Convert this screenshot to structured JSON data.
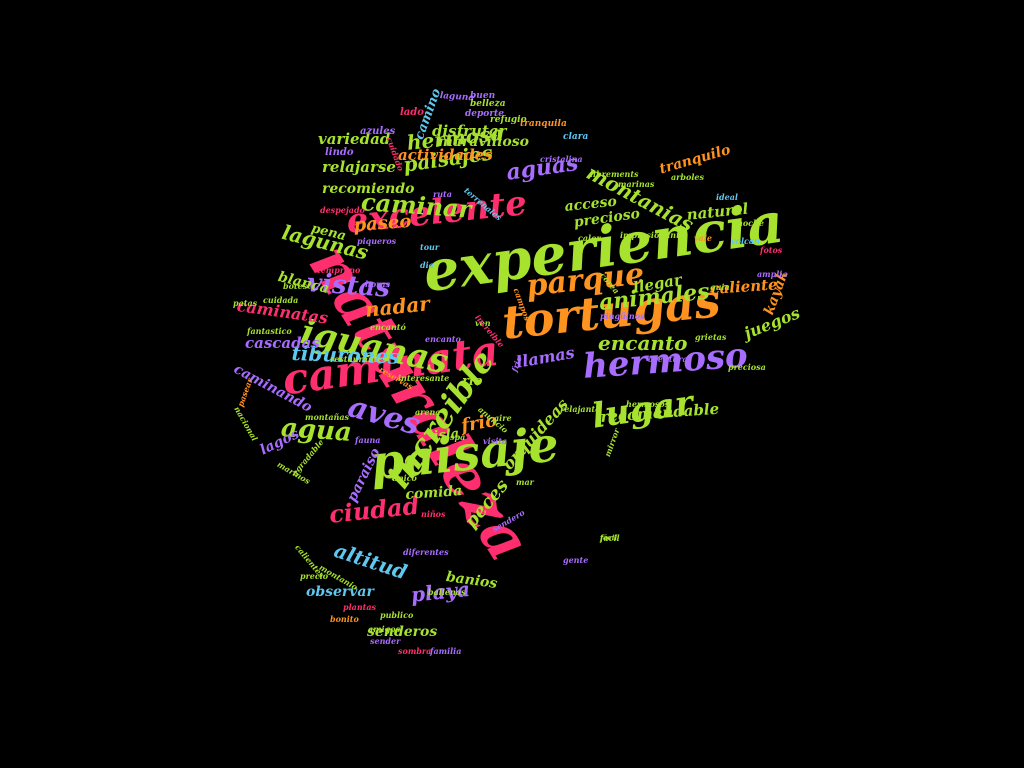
{
  "palette": {
    "pink": "#ff2e6e",
    "green": "#a6e22e",
    "orange": "#ff9320",
    "purple": "#a86cff",
    "cyan": "#5ec8f0",
    "background": "#000000"
  },
  "words": [
    {
      "text": "naturaleza",
      "color": "pink"
    },
    {
      "text": "experiencia",
      "color": "green"
    },
    {
      "text": "tortugas",
      "color": "orange"
    },
    {
      "text": "paisaje",
      "color": "green"
    },
    {
      "text": "caminata",
      "color": "pink"
    },
    {
      "text": "hermoso",
      "color": "purple"
    },
    {
      "text": "excelente",
      "color": "pink"
    },
    {
      "text": "iguanas",
      "color": "green"
    },
    {
      "text": "lugar",
      "color": "green"
    },
    {
      "text": "increible",
      "color": "green"
    },
    {
      "text": "parque",
      "color": "orange"
    },
    {
      "text": "aves",
      "color": "purple"
    },
    {
      "text": "vistas",
      "color": "purple"
    },
    {
      "text": "animales",
      "color": "green"
    },
    {
      "text": "caminar",
      "color": "green"
    },
    {
      "text": "aguas",
      "color": "purple"
    },
    {
      "text": "agua",
      "color": "green"
    },
    {
      "text": "montanias",
      "color": "green"
    },
    {
      "text": "tiburones",
      "color": "cyan"
    },
    {
      "text": "ciudad",
      "color": "pink"
    },
    {
      "text": "paisajes",
      "color": "green"
    },
    {
      "text": "lagunas",
      "color": "green"
    },
    {
      "text": "hermosa",
      "color": "green"
    },
    {
      "text": "encanto",
      "color": "green"
    },
    {
      "text": "altitud",
      "color": "cyan"
    },
    {
      "text": "playa",
      "color": "purple"
    },
    {
      "text": "nadar",
      "color": "orange"
    },
    {
      "text": "peces",
      "color": "green"
    },
    {
      "text": "paseo",
      "color": "orange"
    },
    {
      "text": "frio",
      "color": "orange"
    },
    {
      "text": "orquideas",
      "color": "green"
    },
    {
      "text": "juegos",
      "color": "green"
    },
    {
      "text": "llamas",
      "color": "purple"
    },
    {
      "text": "recomendable",
      "color": "green"
    },
    {
      "text": "actividades",
      "color": "orange"
    },
    {
      "text": "disfrutar",
      "color": "green"
    },
    {
      "text": "maravilloso",
      "color": "green"
    },
    {
      "text": "variedad",
      "color": "green"
    },
    {
      "text": "relajarse",
      "color": "green"
    },
    {
      "text": "recomiendo",
      "color": "green"
    },
    {
      "text": "caminatas",
      "color": "pink"
    },
    {
      "text": "cascadas",
      "color": "purple"
    },
    {
      "text": "caminando",
      "color": "purple"
    },
    {
      "text": "caliente",
      "color": "orange"
    },
    {
      "text": "llegar",
      "color": "green"
    },
    {
      "text": "natural",
      "color": "green"
    },
    {
      "text": "tranquilo",
      "color": "orange"
    },
    {
      "text": "acceso",
      "color": "green"
    },
    {
      "text": "precioso",
      "color": "green"
    },
    {
      "text": "blanca",
      "color": "green"
    },
    {
      "text": "pena",
      "color": "green"
    },
    {
      "text": "camino",
      "color": "cyan"
    },
    {
      "text": "kayak",
      "color": "orange"
    },
    {
      "text": "lagos",
      "color": "purple"
    },
    {
      "text": "paraiso",
      "color": "purple"
    },
    {
      "text": "comida",
      "color": "green"
    },
    {
      "text": "isla",
      "color": "green"
    },
    {
      "text": "rio",
      "color": "green"
    },
    {
      "text": "banios",
      "color": "green"
    },
    {
      "text": "observar",
      "color": "cyan"
    },
    {
      "text": "senderos",
      "color": "green"
    },
    {
      "text": "azules",
      "color": "purple"
    },
    {
      "text": "lindo",
      "color": "purple"
    },
    {
      "text": "lado",
      "color": "pink"
    },
    {
      "text": "laguna",
      "color": "purple"
    },
    {
      "text": "buen",
      "color": "purple"
    },
    {
      "text": "belleza",
      "color": "green"
    },
    {
      "text": "deporte",
      "color": "purple"
    },
    {
      "text": "refugio",
      "color": "green"
    },
    {
      "text": "tranquila",
      "color": "orange"
    },
    {
      "text": "clara",
      "color": "cyan"
    },
    {
      "text": "cristalina",
      "color": "purple"
    },
    {
      "text": "cuidado",
      "color": "pink"
    },
    {
      "text": "librements",
      "color": "green"
    },
    {
      "text": "marinas",
      "color": "green"
    },
    {
      "text": "arboles",
      "color": "green"
    },
    {
      "text": "ideal",
      "color": "cyan"
    },
    {
      "text": "noche",
      "color": "green"
    },
    {
      "text": "volcan",
      "color": "cyan"
    },
    {
      "text": "fotos",
      "color": "pink"
    },
    {
      "text": "amplia",
      "color": "purple"
    },
    {
      "text": "guia",
      "color": "green"
    },
    {
      "text": "vale",
      "color": "orange"
    },
    {
      "text": "calor",
      "color": "green"
    },
    {
      "text": "impresionante",
      "color": "green"
    },
    {
      "text": "tour",
      "color": "cyan"
    },
    {
      "text": "piqueros",
      "color": "purple"
    },
    {
      "text": "temprano",
      "color": "pink"
    },
    {
      "text": "botes",
      "color": "green"
    },
    {
      "text": "patas",
      "color": "green"
    },
    {
      "text": "cuidada",
      "color": "green"
    },
    {
      "text": "fantastico",
      "color": "green"
    },
    {
      "text": "encantó",
      "color": "green"
    },
    {
      "text": "horas",
      "color": "purple"
    },
    {
      "text": "dia",
      "color": "cyan"
    },
    {
      "text": "despejado",
      "color": "pink"
    },
    {
      "text": "terrenales",
      "color": "cyan"
    },
    {
      "text": "ruta",
      "color": "purple"
    },
    {
      "text": "corea",
      "color": "green"
    },
    {
      "text": "restaurantes",
      "color": "green"
    },
    {
      "text": "interesante",
      "color": "green"
    },
    {
      "text": "ven",
      "color": "green"
    },
    {
      "text": "pingüinos",
      "color": "purple"
    },
    {
      "text": "grietas",
      "color": "green"
    },
    {
      "text": "aventura",
      "color": "purple"
    },
    {
      "text": "preciosa",
      "color": "green"
    },
    {
      "text": "relajante",
      "color": "green"
    },
    {
      "text": "hermosos",
      "color": "green"
    },
    {
      "text": "arena",
      "color": "green"
    },
    {
      "text": "aire",
      "color": "green"
    },
    {
      "text": "visita",
      "color": "purple"
    },
    {
      "text": "mar",
      "color": "green"
    },
    {
      "text": "unico",
      "color": "green"
    },
    {
      "text": "niños",
      "color": "pink"
    },
    {
      "text": "diferentes",
      "color": "purple"
    },
    {
      "text": "facil",
      "color": "green"
    },
    {
      "text": "gente",
      "color": "purple"
    },
    {
      "text": "ballenas",
      "color": "green"
    },
    {
      "text": "publico",
      "color": "green"
    },
    {
      "text": "plantas",
      "color": "pink"
    },
    {
      "text": "amigos",
      "color": "green"
    },
    {
      "text": "bonito",
      "color": "orange"
    },
    {
      "text": "sender",
      "color": "purple"
    },
    {
      "text": "sombra",
      "color": "pink"
    },
    {
      "text": "familia",
      "color": "purple"
    },
    {
      "text": "precio",
      "color": "green"
    },
    {
      "text": "montanio",
      "color": "green"
    },
    {
      "text": "calientes",
      "color": "green"
    },
    {
      "text": "nacional",
      "color": "green"
    },
    {
      "text": "agradable",
      "color": "green"
    },
    {
      "text": "marinos",
      "color": "green"
    },
    {
      "text": "montañas",
      "color": "green"
    },
    {
      "text": "fauna",
      "color": "purple"
    },
    {
      "text": "spa",
      "color": "green"
    },
    {
      "text": "pasear",
      "color": "orange"
    },
    {
      "text": "mirror",
      "color": "green"
    },
    {
      "text": "sendero",
      "color": "purple"
    },
    {
      "text": "increible",
      "color": "pink"
    },
    {
      "text": "encanto",
      "color": "purple"
    },
    {
      "text": "reservas",
      "color": "orange"
    },
    {
      "text": "frio",
      "color": "purple"
    },
    {
      "text": "fácil",
      "color": "green"
    },
    {
      "text": "campos",
      "color": "orange"
    },
    {
      "text": "anuncio",
      "color": "green"
    }
  ]
}
